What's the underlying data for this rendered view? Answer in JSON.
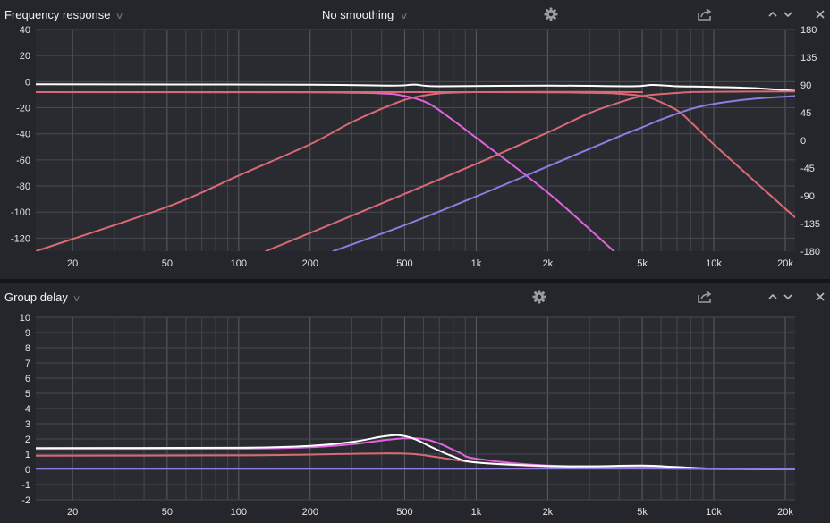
{
  "panels": [
    {
      "title": "Frequency response",
      "smoothing": "No smoothing"
    },
    {
      "title": "Group delay"
    }
  ],
  "chart_data": [
    {
      "type": "line",
      "title": "Frequency response",
      "x_scale": "log",
      "xlim": [
        14,
        22000
      ],
      "ylim": [
        -130,
        40
      ],
      "y2lim": [
        -180,
        180
      ],
      "x_ticks": [
        20,
        50,
        100,
        200,
        500,
        1000,
        2000,
        5000,
        10000,
        20000
      ],
      "x_tick_labels": [
        "20",
        "50",
        "100",
        "200",
        "500",
        "1k",
        "2k",
        "5k",
        "10k",
        "20k"
      ],
      "y_ticks": [
        40,
        20,
        0,
        -20,
        -40,
        -60,
        -80,
        -100,
        -120
      ],
      "y2_ticks": [
        180,
        135,
        90,
        45,
        0,
        -45,
        -90,
        -135,
        -180
      ],
      "grid": true,
      "series": [
        {
          "color": "#ffffff",
          "x": [
            14,
            200,
            450,
            550,
            700,
            2000,
            4500,
            5500,
            7000,
            10000,
            15000,
            22000
          ],
          "y": [
            -2,
            -2.3,
            -3,
            -2.2,
            -3.5,
            -3,
            -3.5,
            -2.5,
            -3.5,
            -4,
            -5,
            -7
          ]
        },
        {
          "color": "#e063e0",
          "x": [
            14,
            200,
            400,
            500,
            600,
            700,
            1000,
            2000,
            3800
          ],
          "y": [
            -8,
            -8.2,
            -9,
            -11,
            -15,
            -22,
            -43,
            -85,
            -130
          ]
        },
        {
          "color": "#d96a75",
          "x": [
            14,
            50,
            100,
            200,
            300,
            450,
            550,
            700,
            1000,
            2000,
            5000
          ],
          "y": [
            -130,
            -96,
            -72,
            -48,
            -31,
            -17,
            -12,
            -9,
            -8,
            -7.8,
            -8
          ]
        },
        {
          "color": "#d96a75",
          "x": [
            130,
            500,
            1000,
            2000,
            3000,
            4000,
            5000,
            6500,
            8000,
            10000,
            22000
          ],
          "y": [
            -130,
            -86,
            -63,
            -39,
            -24,
            -16,
            -11,
            -9,
            -8,
            -7.7,
            -7.5
          ]
        },
        {
          "color": "#d96a75",
          "x": [
            14,
            1000,
            3000,
            4500,
            5500,
            7000,
            8000,
            10000,
            15000,
            22000
          ],
          "y": [
            -8,
            -8,
            -8.5,
            -10,
            -13,
            -22,
            -31,
            -48,
            -77,
            -104
          ]
        },
        {
          "color": "#8c7ee0",
          "x": [
            250,
            500,
            1000,
            2000,
            4000,
            5000,
            6000,
            8000,
            10000,
            15000,
            22000
          ],
          "y": [
            -130,
            -110,
            -88,
            -65,
            -42,
            -35,
            -29,
            -21,
            -17,
            -13,
            -11
          ]
        }
      ]
    },
    {
      "type": "line",
      "title": "Group delay",
      "x_scale": "log",
      "xlim": [
        14,
        22000
      ],
      "ylim": [
        -2,
        10
      ],
      "x_ticks": [
        20,
        50,
        100,
        200,
        500,
        1000,
        2000,
        5000,
        10000,
        20000
      ],
      "x_tick_labels": [
        "20",
        "50",
        "100",
        "200",
        "500",
        "1k",
        "2k",
        "5k",
        "10k",
        "20k"
      ],
      "y_ticks": [
        10,
        9,
        8,
        7,
        6,
        5,
        4,
        3,
        2,
        1,
        0,
        -1,
        -2
      ],
      "grid": true,
      "series": [
        {
          "color": "#d96a75",
          "x": [
            14,
            100,
            200,
            400,
            550,
            700,
            1000,
            2000,
            5000,
            10000,
            22000
          ],
          "y": [
            0.9,
            0.92,
            0.97,
            1.05,
            1.0,
            0.78,
            0.45,
            0.18,
            0.08,
            0.02,
            0
          ]
        },
        {
          "color": "#e063e0",
          "x": [
            14,
            100,
            200,
            300,
            400,
            500,
            600,
            700,
            850,
            1000,
            2000,
            5000,
            10000,
            22000
          ],
          "y": [
            1.35,
            1.36,
            1.45,
            1.65,
            1.9,
            2.05,
            2.0,
            1.7,
            1.1,
            0.7,
            0.25,
            0.2,
            0.05,
            0
          ]
        },
        {
          "color": "#ffffff",
          "x": [
            14,
            100,
            200,
            300,
            400,
            470,
            550,
            650,
            800,
            1000,
            2000,
            3000,
            5000,
            7000,
            10000,
            22000
          ],
          "y": [
            1.4,
            1.42,
            1.55,
            1.8,
            2.15,
            2.25,
            2.0,
            1.45,
            0.85,
            0.45,
            0.22,
            0.2,
            0.25,
            0.15,
            0.05,
            0
          ]
        },
        {
          "color": "#8c7ee0",
          "x": [
            14,
            1000,
            5000,
            10000,
            22000
          ],
          "y": [
            0.05,
            0.05,
            0.06,
            0.03,
            0
          ]
        }
      ]
    }
  ]
}
